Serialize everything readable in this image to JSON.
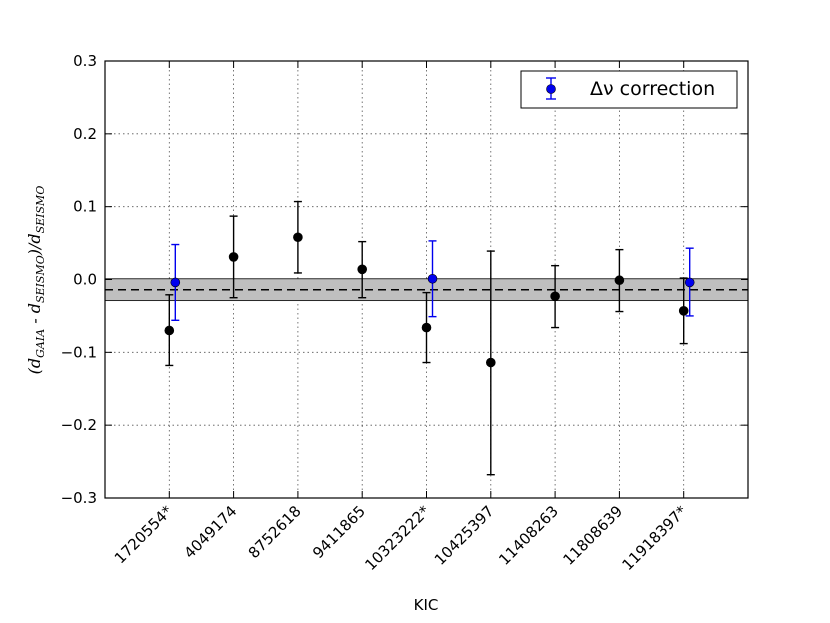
{
  "chart_data": {
    "type": "scatter",
    "xlabel": "KIC",
    "ylabel": "(d_GAIA - d_SEISMO)/d_SEISMO",
    "ylabel_parts": {
      "open": "(d",
      "gaia_sub": "GAIA",
      "minus": " - d",
      "seismo_sub1": "SEISMO",
      "div": ")/d",
      "seismo_sub2": "SEISMO"
    },
    "ylim": [
      -0.3,
      0.3
    ],
    "yticks": [
      "0.3",
      "0.2",
      "0.1",
      "0.0",
      "−0.1",
      "−0.2",
      "−0.3"
    ],
    "ytick_values": [
      0.3,
      0.2,
      0.1,
      0.0,
      -0.1,
      -0.2,
      -0.3
    ],
    "categories": [
      "1720554*",
      "4049174",
      "8752618",
      "9411865",
      "10323222*",
      "10425397",
      "11408263",
      "11808639",
      "11918397*"
    ],
    "grid": true,
    "reference_line": {
      "y": -0.014,
      "style": "dashed",
      "color": "#000000"
    },
    "band": {
      "ymin": -0.029,
      "ymax": 0.001,
      "color": "#bfbfbf"
    },
    "series": [
      {
        "color": "#000000",
        "points": [
          {
            "category": "1720554*",
            "y": -0.07,
            "err_low": -0.118,
            "err_high": -0.021
          },
          {
            "category": "4049174",
            "y": 0.031,
            "err_low": -0.025,
            "err_high": 0.087
          },
          {
            "category": "8752618",
            "y": 0.058,
            "err_low": 0.009,
            "err_high": 0.107
          },
          {
            "category": "9411865",
            "y": 0.014,
            "err_low": -0.025,
            "err_high": 0.052
          },
          {
            "category": "10323222*",
            "y": -0.066,
            "err_low": -0.114,
            "err_high": -0.018
          },
          {
            "category": "10425397",
            "y": -0.114,
            "err_low": -0.268,
            "err_high": 0.039
          },
          {
            "category": "11408263",
            "y": -0.023,
            "err_low": -0.066,
            "err_high": 0.019
          },
          {
            "category": "11808639",
            "y": -0.001,
            "err_low": -0.044,
            "err_high": 0.041
          },
          {
            "category": "11918397*",
            "y": -0.043,
            "err_low": -0.088,
            "err_high": 0.002
          }
        ]
      },
      {
        "name": "Δν correction",
        "color": "#0000ee",
        "points": [
          {
            "category": "1720554*",
            "y": -0.004,
            "err_low": -0.056,
            "err_high": 0.048
          },
          {
            "category": "10323222*",
            "y": 0.001,
            "err_low": -0.051,
            "err_high": 0.053
          },
          {
            "category": "11918397*",
            "y": -0.004,
            "err_low": -0.05,
            "err_high": 0.043
          }
        ]
      }
    ],
    "legend": {
      "position": "top-right",
      "label": "Δν correction"
    }
  }
}
